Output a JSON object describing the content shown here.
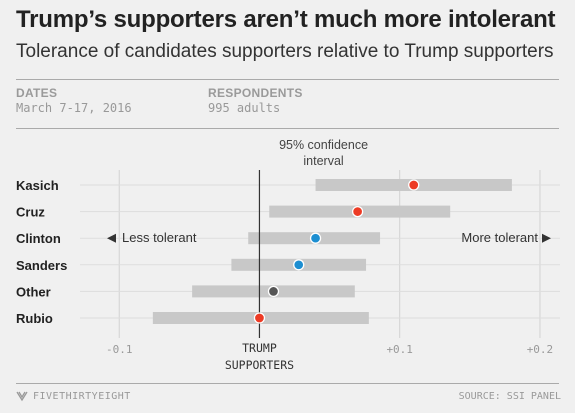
{
  "header": {
    "title": "Trump’s supporters aren’t much more intolerant",
    "subtitle": "Tolerance of candidates supporters relative to Trump supporters"
  },
  "meta": {
    "dates_label": "DATES",
    "dates_value": "March 7-17, 2016",
    "respondents_label": "RESPONDENTS",
    "respondents_value": "995 adults"
  },
  "chart_data": {
    "type": "scatter",
    "categories": [
      "Kasich",
      "Cruz",
      "Clinton",
      "Sanders",
      "Other",
      "Rubio"
    ],
    "points": [
      {
        "name": "Kasich",
        "value": 0.11,
        "ci": [
          0.04,
          0.18
        ],
        "color": "#ed3b25"
      },
      {
        "name": "Cruz",
        "value": 0.07,
        "ci": [
          0.007,
          0.136
        ],
        "color": "#ed3b25"
      },
      {
        "name": "Clinton",
        "value": 0.04,
        "ci": [
          -0.008,
          0.086
        ],
        "color": "#1c8ed1"
      },
      {
        "name": "Sanders",
        "value": 0.028,
        "ci": [
          -0.02,
          0.076
        ],
        "color": "#1c8ed1"
      },
      {
        "name": "Other",
        "value": 0.01,
        "ci": [
          -0.048,
          0.068
        ],
        "color": "#555555"
      },
      {
        "name": "Rubio",
        "value": 0.0,
        "ci": [
          -0.076,
          0.078
        ],
        "color": "#ed3b25"
      }
    ],
    "xlim": [
      -0.185,
      0.225
    ],
    "xticks": [
      {
        "value": -0.1,
        "label": "-0.1"
      },
      {
        "value": 0.1,
        "label": "+0.1"
      },
      {
        "value": 0.2,
        "label": "+0.2"
      }
    ],
    "zero_label_line1": "TRUMP",
    "zero_label_line2": "SUPPORTERS",
    "ci_label_line1": "95% confidence",
    "ci_label_line2": "interval",
    "less_label": "Less tolerant",
    "more_label": "More tolerant",
    "colors": {
      "ci_band": "#c8c8c8",
      "grid": "#d2d2d2",
      "zero_line": "#333333"
    }
  },
  "footer": {
    "logo_text": "FIVETHIRTYEIGHT",
    "source": "SOURCE: SSI PANEL"
  }
}
